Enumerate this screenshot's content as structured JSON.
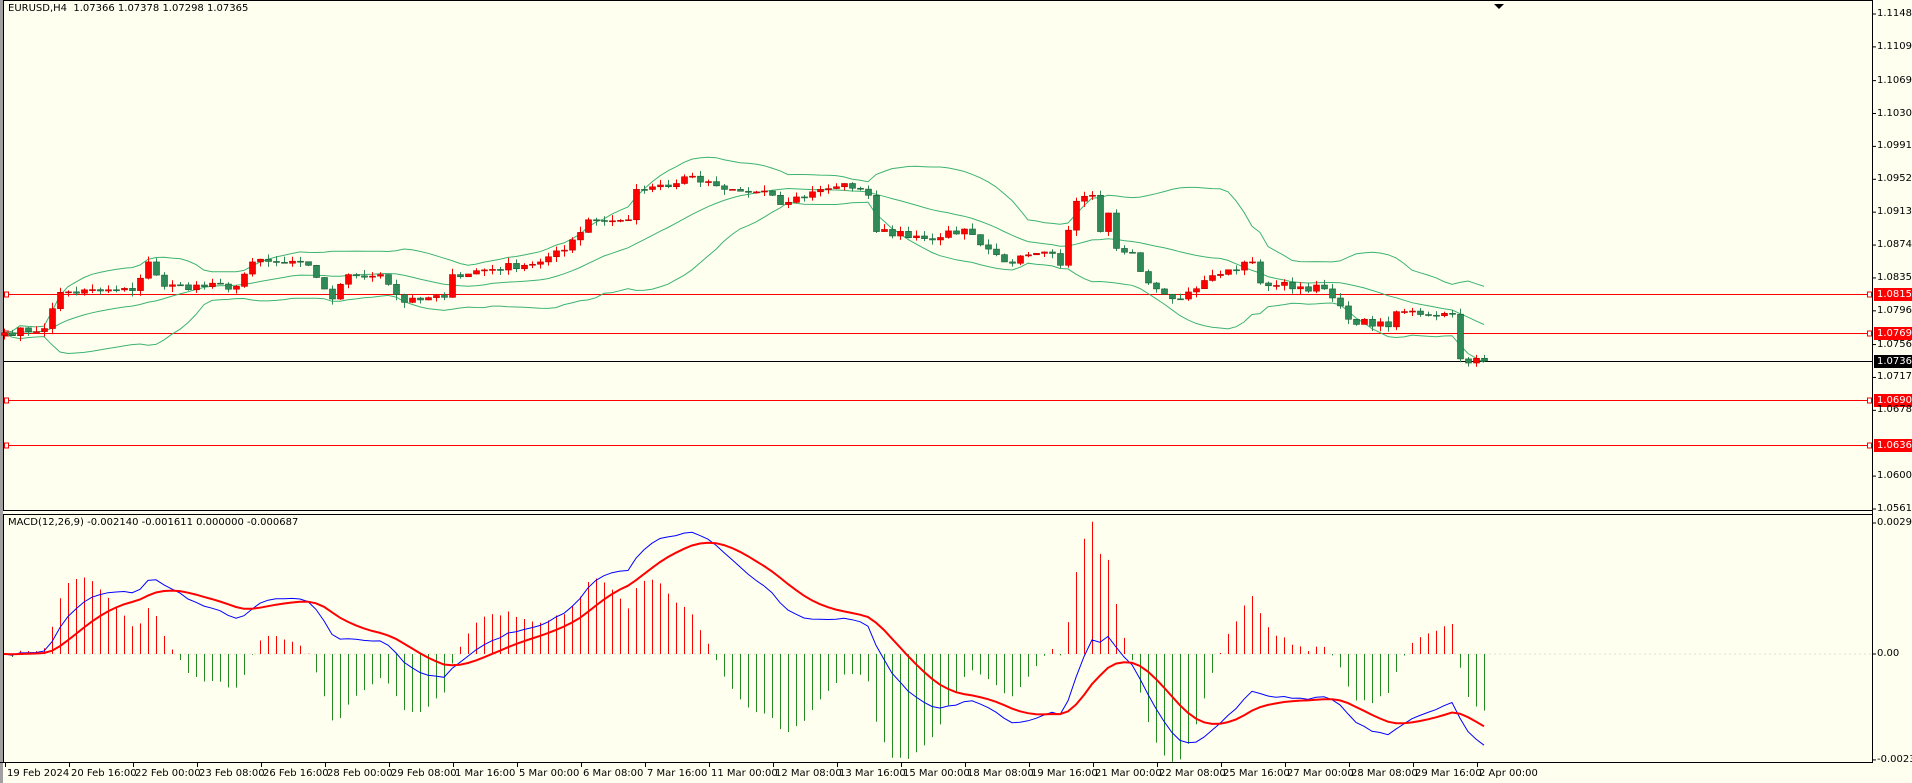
{
  "header": {
    "symbol_tf": "EURUSD,H4",
    "ohlc": "1.07366 1.07378 1.07298 1.07365"
  },
  "macd_header": {
    "label": "MACD(12,26,9) -0.002140 -0.001611 0.000000 -0.000687"
  },
  "price_axis": [
    "1.11480",
    "1.11090",
    "1.10690",
    "1.10300",
    "1.09910",
    "1.09520",
    "1.09130",
    "1.08740",
    "1.08350",
    "1.07960",
    "1.07560",
    "1.07170",
    "1.06780",
    "1.06000",
    "1.05610"
  ],
  "macd_axis": [
    "0.002944",
    "0.00",
    "-0.00238"
  ],
  "levels": [
    {
      "price": "1.08158",
      "color": "#ff0000"
    },
    {
      "price": "1.07694",
      "color": "#ff0000"
    },
    {
      "price": "1.07365",
      "color": "#000000",
      "current": true
    },
    {
      "price": "1.06905",
      "color": "#ff0000"
    },
    {
      "price": "1.06365",
      "color": "#ff0000"
    }
  ],
  "time_labels": [
    "19 Feb 2024",
    "20 Feb 16:00",
    "22 Feb 00:00",
    "23 Feb 08:00",
    "26 Feb 16:00",
    "28 Feb 00:00",
    "29 Feb 08:00",
    "1 Mar 16:00",
    "5 Mar 00:00",
    "6 Mar 08:00",
    "7 Mar 16:00",
    "11 Mar 00:00",
    "12 Mar 08:00",
    "13 Mar 16:00",
    "15 Mar 00:00",
    "18 Mar 08:00",
    "19 Mar 16:00",
    "21 Mar 00:00",
    "22 Mar 08:00",
    "25 Mar 16:00",
    "27 Mar 00:00",
    "28 Mar 08:00",
    "29 Mar 16:00",
    "2 Apr 00:00"
  ],
  "colors": {
    "background": "#fffff0",
    "bull": "#ff0000",
    "bear": "#2e8b57",
    "bands": "#3cb371",
    "macd": "#0000ff",
    "signal": "#ff0000",
    "hist_pos": "#ff0000",
    "hist_neg": "#228b22"
  },
  "chart_data": {
    "type": "candlestick",
    "symbol": "EURUSD",
    "timeframe": "H4",
    "price_range": [
      1.0561,
      1.1148
    ],
    "close_path": [
      [
        0,
        1.077
      ],
      [
        5,
        1.0775
      ],
      [
        7,
        1.0818
      ],
      [
        16,
        1.082
      ],
      [
        18,
        1.0854
      ],
      [
        20,
        1.0825
      ],
      [
        29,
        1.0825
      ],
      [
        31,
        1.0854
      ],
      [
        38,
        1.085
      ],
      [
        41,
        1.081
      ],
      [
        43,
        1.0839
      ],
      [
        47,
        1.0839
      ],
      [
        50,
        1.0806
      ],
      [
        55,
        1.0812
      ],
      [
        56,
        1.0839
      ],
      [
        67,
        1.0854
      ],
      [
        70,
        1.0868
      ],
      [
        73,
        1.0904
      ],
      [
        78,
        1.0904
      ],
      [
        79,
        1.094
      ],
      [
        84,
        1.0947
      ],
      [
        85,
        1.0955
      ],
      [
        90,
        1.094
      ],
      [
        96,
        1.0933
      ],
      [
        97,
        1.0922
      ],
      [
        102,
        1.094
      ],
      [
        105,
        1.0947
      ],
      [
        108,
        1.0933
      ],
      [
        109,
        1.089
      ],
      [
        117,
        1.0883
      ],
      [
        120,
        1.0893
      ],
      [
        125,
        1.0854
      ],
      [
        131,
        1.0864
      ],
      [
        132,
        1.085
      ],
      [
        134,
        1.0926
      ],
      [
        136,
        1.0933
      ],
      [
        137,
        1.089
      ],
      [
        138,
        1.0912
      ],
      [
        139,
        1.087
      ],
      [
        141,
        1.0865
      ],
      [
        143,
        1.0829
      ],
      [
        147,
        1.081
      ],
      [
        150,
        1.0832
      ],
      [
        156,
        1.0854
      ],
      [
        157,
        1.0829
      ],
      [
        165,
        1.0822
      ],
      [
        168,
        1.0786
      ],
      [
        173,
        1.0777
      ],
      [
        174,
        1.0795
      ],
      [
        181,
        1.0792
      ],
      [
        182,
        1.0739
      ],
      [
        185,
        1.07365
      ]
    ],
    "indicators": [
      "Bollinger Bands(20,2)",
      "MACD(12,26,9)"
    ],
    "macd_range": [
      -0.00238,
      0.002944
    ]
  }
}
